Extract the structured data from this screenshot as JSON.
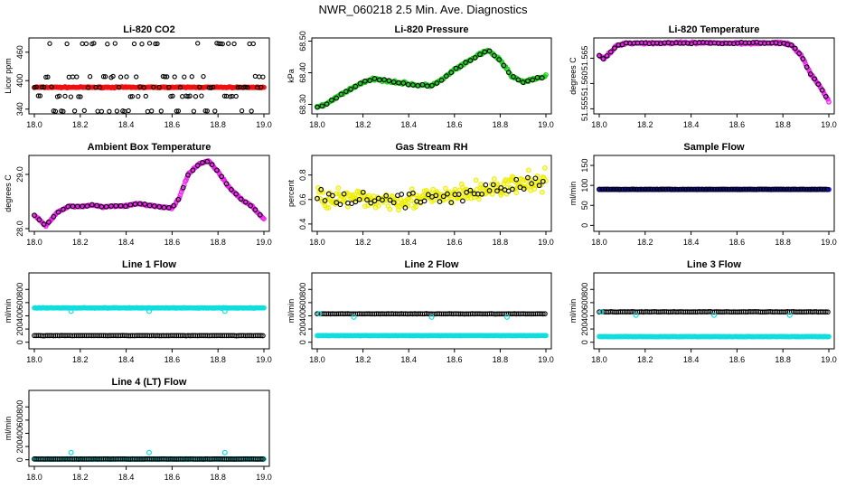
{
  "figure_title": "NWR_060218  2.5 Min. Ave. Diagnostics",
  "chart_data": [
    {
      "type": "scatter",
      "title": "Li-820 CO2",
      "ylabel": "Licor ppm",
      "xlim": [
        18.0,
        19.0
      ],
      "ylim": [
        330,
        490
      ],
      "xticks": [
        "18.0",
        "18.2",
        "18.4",
        "18.6",
        "18.8",
        "19.0"
      ],
      "yticks": [
        "340",
        "400",
        "460"
      ],
      "ytickvals": [
        340,
        400,
        460
      ],
      "series": [
        {
          "name": "red",
          "color": "#ee1111",
          "marker": "o",
          "kind": "band",
          "y": 386,
          "noise": 1.5
        },
        {
          "name": "black",
          "color": "#000000",
          "marker": "o",
          "kind": "levels",
          "levels": [
            336,
            367,
            386,
            408,
            478
          ],
          "period": 0.085
        }
      ]
    },
    {
      "type": "scatter",
      "title": "Li-820 Pressure",
      "ylabel": "kPa",
      "xlim": [
        18.0,
        19.0
      ],
      "ylim": [
        68.27,
        68.51
      ],
      "xticks": [
        "18.0",
        "18.2",
        "18.4",
        "18.6",
        "18.8",
        "19.0"
      ],
      "yticks": [
        "68.30",
        "68.40",
        "68.50"
      ],
      "ytickvals": [
        68.3,
        68.4,
        68.5
      ],
      "curve": [
        [
          18.0,
          68.29
        ],
        [
          18.05,
          68.305
        ],
        [
          18.1,
          68.33
        ],
        [
          18.15,
          68.35
        ],
        [
          18.2,
          68.37
        ],
        [
          18.25,
          68.38
        ],
        [
          18.3,
          68.375
        ],
        [
          18.35,
          68.37
        ],
        [
          18.4,
          68.365
        ],
        [
          18.45,
          68.36
        ],
        [
          18.5,
          68.36
        ],
        [
          18.55,
          68.38
        ],
        [
          18.6,
          68.41
        ],
        [
          18.65,
          68.43
        ],
        [
          18.7,
          68.455
        ],
        [
          18.75,
          68.47
        ],
        [
          18.8,
          68.44
        ],
        [
          18.85,
          68.39
        ],
        [
          18.9,
          68.37
        ],
        [
          18.95,
          68.38
        ],
        [
          19.0,
          68.39
        ]
      ],
      "series": [
        {
          "name": "green",
          "color": "#22cc22",
          "marker": "o",
          "noise": 0.006
        },
        {
          "name": "black",
          "color": "#000000",
          "marker": "o",
          "noise": 0.004,
          "every": 5
        }
      ]
    },
    {
      "type": "scatter",
      "title": "Li-820 Temperature",
      "ylabel": "degrees C",
      "xlim": [
        18.0,
        19.0
      ],
      "ylim": [
        51.554,
        51.569
      ],
      "xticks": [
        "18.0",
        "18.2",
        "18.4",
        "18.6",
        "18.8",
        "19.0"
      ],
      "yticks": [
        "51.555",
        "51.560",
        "51.565"
      ],
      "ytickvals": [
        51.555,
        51.56,
        51.565
      ],
      "curve": [
        [
          18.0,
          51.5655
        ],
        [
          18.02,
          51.5648
        ],
        [
          18.05,
          51.5662
        ],
        [
          18.08,
          51.5676
        ],
        [
          18.12,
          51.568
        ],
        [
          18.8,
          51.568
        ],
        [
          18.84,
          51.5675
        ],
        [
          18.88,
          51.5655
        ],
        [
          18.92,
          51.562
        ],
        [
          18.96,
          51.5595
        ],
        [
          19.0,
          51.5565
        ]
      ],
      "series": [
        {
          "name": "magenta",
          "color": "#ee22ee",
          "marker": "o",
          "noise": 0.0003
        },
        {
          "name": "black",
          "color": "#000000",
          "marker": "o",
          "noise": 0.0002,
          "every": 4
        }
      ]
    },
    {
      "type": "scatter",
      "title": "Ambient Box Temperature",
      "ylabel": "degrees C",
      "xlim": [
        18.0,
        19.0
      ],
      "ylim": [
        27.95,
        29.35
      ],
      "xticks": [
        "18.0",
        "18.2",
        "18.4",
        "18.6",
        "18.8",
        "19.0"
      ],
      "yticks": [
        "28.0",
        "29.0"
      ],
      "ytickvals": [
        28.0,
        29.0
      ],
      "curve": [
        [
          18.0,
          28.25
        ],
        [
          18.05,
          28.05
        ],
        [
          18.1,
          28.3
        ],
        [
          18.15,
          28.42
        ],
        [
          18.2,
          28.4
        ],
        [
          18.25,
          28.44
        ],
        [
          18.3,
          28.4
        ],
        [
          18.35,
          28.42
        ],
        [
          18.4,
          28.42
        ],
        [
          18.45,
          28.46
        ],
        [
          18.5,
          28.43
        ],
        [
          18.55,
          28.4
        ],
        [
          18.6,
          28.38
        ],
        [
          18.63,
          28.55
        ],
        [
          18.67,
          29.0
        ],
        [
          18.72,
          29.2
        ],
        [
          18.76,
          29.25
        ],
        [
          18.8,
          29.05
        ],
        [
          18.85,
          28.75
        ],
        [
          18.9,
          28.55
        ],
        [
          18.95,
          28.4
        ],
        [
          19.0,
          28.18
        ]
      ],
      "series": [
        {
          "name": "magenta",
          "color": "#ee22ee",
          "marker": "o",
          "noise": 0.02
        },
        {
          "name": "black",
          "color": "#000000",
          "marker": "o",
          "noise": 0.015,
          "every": 5
        }
      ]
    },
    {
      "type": "scatter",
      "title": "Gas Stream RH",
      "ylabel": "percent",
      "xlim": [
        18.0,
        19.0
      ],
      "ylim": [
        0.34,
        0.96
      ],
      "xticks": [
        "18.0",
        "18.2",
        "18.4",
        "18.6",
        "18.8",
        "19.0"
      ],
      "yticks": [
        "0.4",
        "0.6",
        "0.8"
      ],
      "ytickvals": [
        0.4,
        0.6,
        0.8
      ],
      "curve": [
        [
          18.0,
          0.62
        ],
        [
          18.2,
          0.6
        ],
        [
          18.4,
          0.6
        ],
        [
          18.6,
          0.63
        ],
        [
          18.8,
          0.7
        ],
        [
          19.0,
          0.75
        ]
      ],
      "series": [
        {
          "name": "yellow",
          "color": "#eeee00",
          "marker": "o",
          "noise": 0.12
        },
        {
          "name": "black",
          "color": "#000000",
          "marker": "o",
          "noise": 0.1,
          "every": 4
        }
      ]
    },
    {
      "type": "scatter",
      "title": "Sample Flow",
      "ylabel": "ml/min",
      "xlim": [
        18.0,
        19.0
      ],
      "ylim": [
        -15,
        175
      ],
      "xticks": [
        "18.0",
        "18.2",
        "18.4",
        "18.6",
        "18.8",
        "19.0"
      ],
      "yticks": [
        "0",
        "50",
        "100",
        "150"
      ],
      "ytickvals": [
        0,
        50,
        100,
        150
      ],
      "series": [
        {
          "name": "blue",
          "color": "#1111cc",
          "marker": "o",
          "kind": "band",
          "y": 90,
          "noise": 0.8
        },
        {
          "name": "black",
          "color": "#000000",
          "marker": "o",
          "kind": "band",
          "y": 90,
          "noise": 0.6,
          "every": 3
        }
      ]
    },
    {
      "type": "scatter",
      "title": "Line 1 Flow",
      "ylabel": "ml/min",
      "xlim": [
        18.0,
        19.0
      ],
      "ylim": [
        -100,
        1050
      ],
      "xticks": [
        "18.0",
        "18.2",
        "18.4",
        "18.6",
        "18.8",
        "19.0"
      ],
      "yticks": [
        "0",
        "200",
        "400",
        "600",
        "800"
      ],
      "ytickvals": [
        0,
        200,
        400,
        600,
        800
      ],
      "series": [
        {
          "name": "cyan",
          "color": "#11dddd",
          "marker": "o",
          "kind": "band",
          "y": 520,
          "noise": 6
        },
        {
          "name": "black",
          "color": "#000000",
          "marker": "o",
          "kind": "band",
          "y": 100,
          "noise": 3,
          "every": 2
        }
      ],
      "outliers": [
        {
          "x": 18.16,
          "y": 470
        },
        {
          "x": 18.5,
          "y": 470
        },
        {
          "x": 18.83,
          "y": 470
        }
      ]
    },
    {
      "type": "scatter",
      "title": "Line 2 Flow",
      "ylabel": "ml/min",
      "xlim": [
        18.0,
        19.0
      ],
      "ylim": [
        -100,
        1050
      ],
      "xticks": [
        "18.0",
        "18.2",
        "18.4",
        "18.6",
        "18.8",
        "19.0"
      ],
      "yticks": [
        "0",
        "200",
        "400",
        "600",
        "800"
      ],
      "ytickvals": [
        0,
        200,
        400,
        600,
        800
      ],
      "series": [
        {
          "name": "cyan",
          "color": "#11dddd",
          "marker": "o",
          "kind": "band",
          "y": 100,
          "noise": 3
        },
        {
          "name": "black",
          "color": "#000000",
          "marker": "o",
          "kind": "band",
          "y": 430,
          "noise": 4,
          "every": 2
        }
      ],
      "outliers": [
        {
          "x": 18.01,
          "y": 430
        },
        {
          "x": 18.16,
          "y": 380
        },
        {
          "x": 18.5,
          "y": 380
        },
        {
          "x": 18.83,
          "y": 380
        }
      ]
    },
    {
      "type": "scatter",
      "title": "Line 3 Flow",
      "ylabel": "ml/min",
      "xlim": [
        18.0,
        19.0
      ],
      "ylim": [
        -100,
        1050
      ],
      "xticks": [
        "18.0",
        "18.2",
        "18.4",
        "18.6",
        "18.8",
        "19.0"
      ],
      "yticks": [
        "0",
        "200",
        "400",
        "600",
        "800"
      ],
      "ytickvals": [
        0,
        200,
        400,
        600,
        800
      ],
      "series": [
        {
          "name": "cyan",
          "color": "#11dddd",
          "marker": "o",
          "kind": "band",
          "y": 85,
          "noise": 3
        },
        {
          "name": "black",
          "color": "#000000",
          "marker": "o",
          "kind": "band",
          "y": 460,
          "noise": 4,
          "every": 2
        }
      ],
      "outliers": [
        {
          "x": 18.01,
          "y": 460
        },
        {
          "x": 18.16,
          "y": 410
        },
        {
          "x": 18.5,
          "y": 410
        },
        {
          "x": 18.83,
          "y": 410
        }
      ]
    },
    {
      "type": "scatter",
      "title": "Line 4 (LT) Flow",
      "ylabel": "ml/min",
      "xlim": [
        18.0,
        19.0
      ],
      "ylim": [
        -100,
        1050
      ],
      "xticks": [
        "18.0",
        "18.2",
        "18.4",
        "18.6",
        "18.8",
        "19.0"
      ],
      "yticks": [
        "0",
        "200",
        "400",
        "600",
        "800"
      ],
      "ytickvals": [
        0,
        200,
        400,
        600,
        800
      ],
      "series": [
        {
          "name": "cyan",
          "color": "#11dddd",
          "marker": "o",
          "kind": "band",
          "y": 10,
          "noise": 2
        },
        {
          "name": "black",
          "color": "#000000",
          "marker": "o",
          "kind": "band",
          "y": 10,
          "noise": 2,
          "every": 2
        }
      ],
      "outliers": [
        {
          "x": 18.16,
          "y": 110
        },
        {
          "x": 18.5,
          "y": 110
        },
        {
          "x": 18.83,
          "y": 110
        }
      ]
    }
  ]
}
